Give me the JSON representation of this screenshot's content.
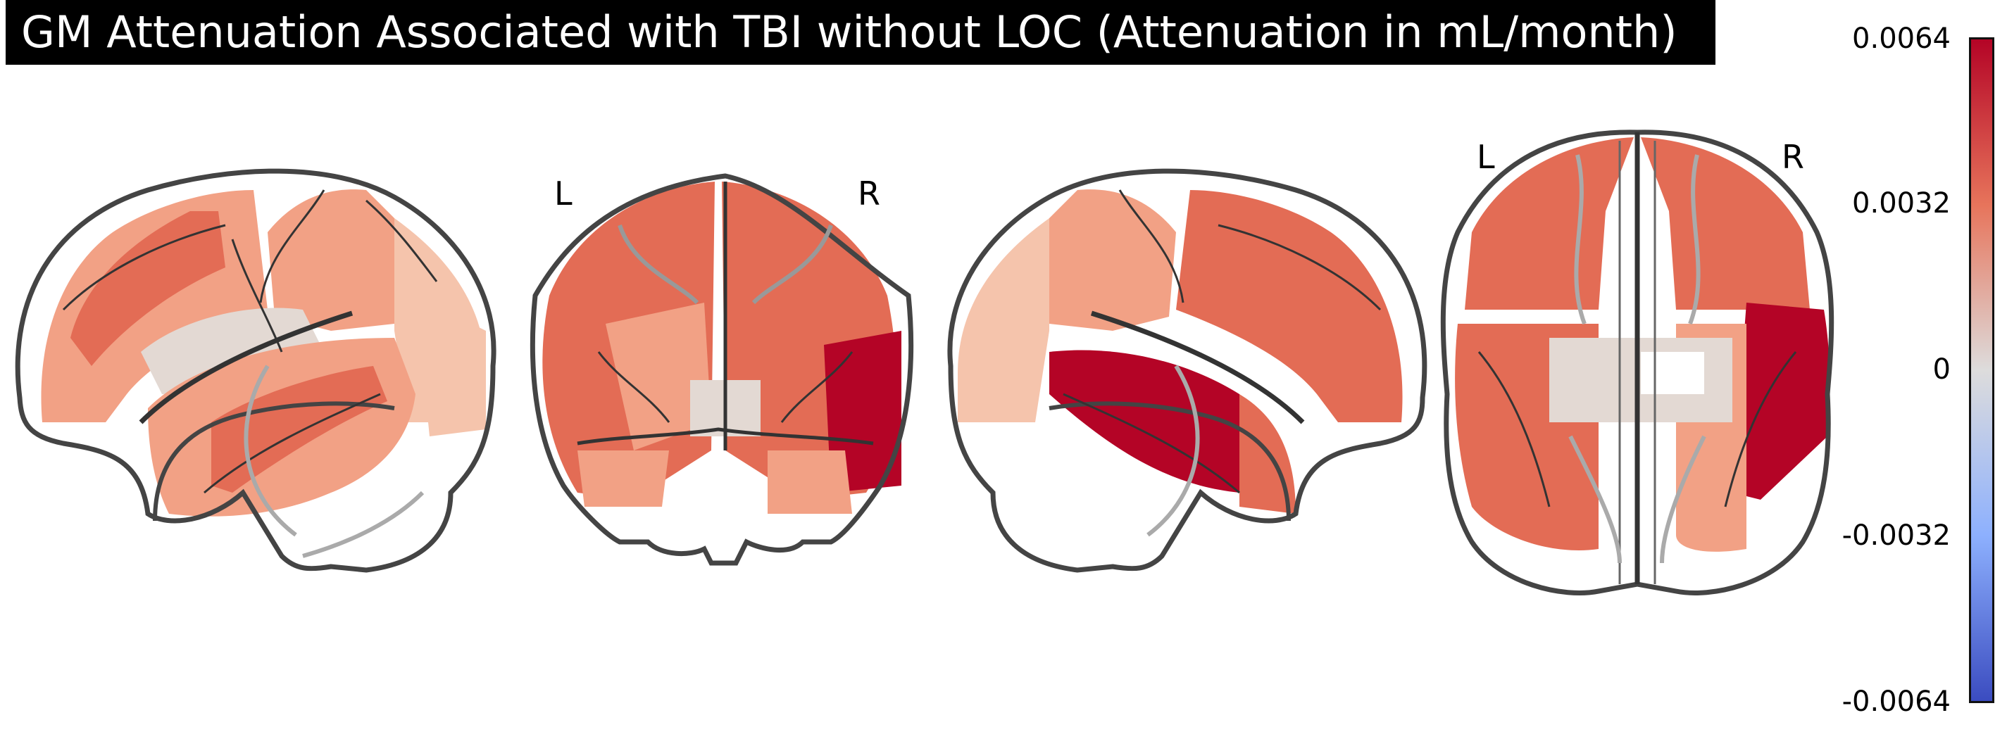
{
  "title": "GM Attenuation Associated with TBI without LOC (Attenuation in mL/month)",
  "views": [
    "left-sagittal",
    "coronal",
    "right-sagittal",
    "axial"
  ],
  "orientation_labels": {
    "coronal_left": "L",
    "coronal_right": "R",
    "axial_left": "L",
    "axial_right": "R"
  },
  "colorbar": {
    "ticks": [
      "0.0064",
      "0.0032",
      "0",
      "-0.0032",
      "-0.0064"
    ],
    "colormap": "coolwarm",
    "max": 0.0064,
    "min": -0.0064
  },
  "colors": {
    "strong": "#b40426",
    "medium": "#e36c55",
    "light": "#f2a185",
    "pale": "#f5c4ac",
    "neutral": "#e3d9d3"
  }
}
